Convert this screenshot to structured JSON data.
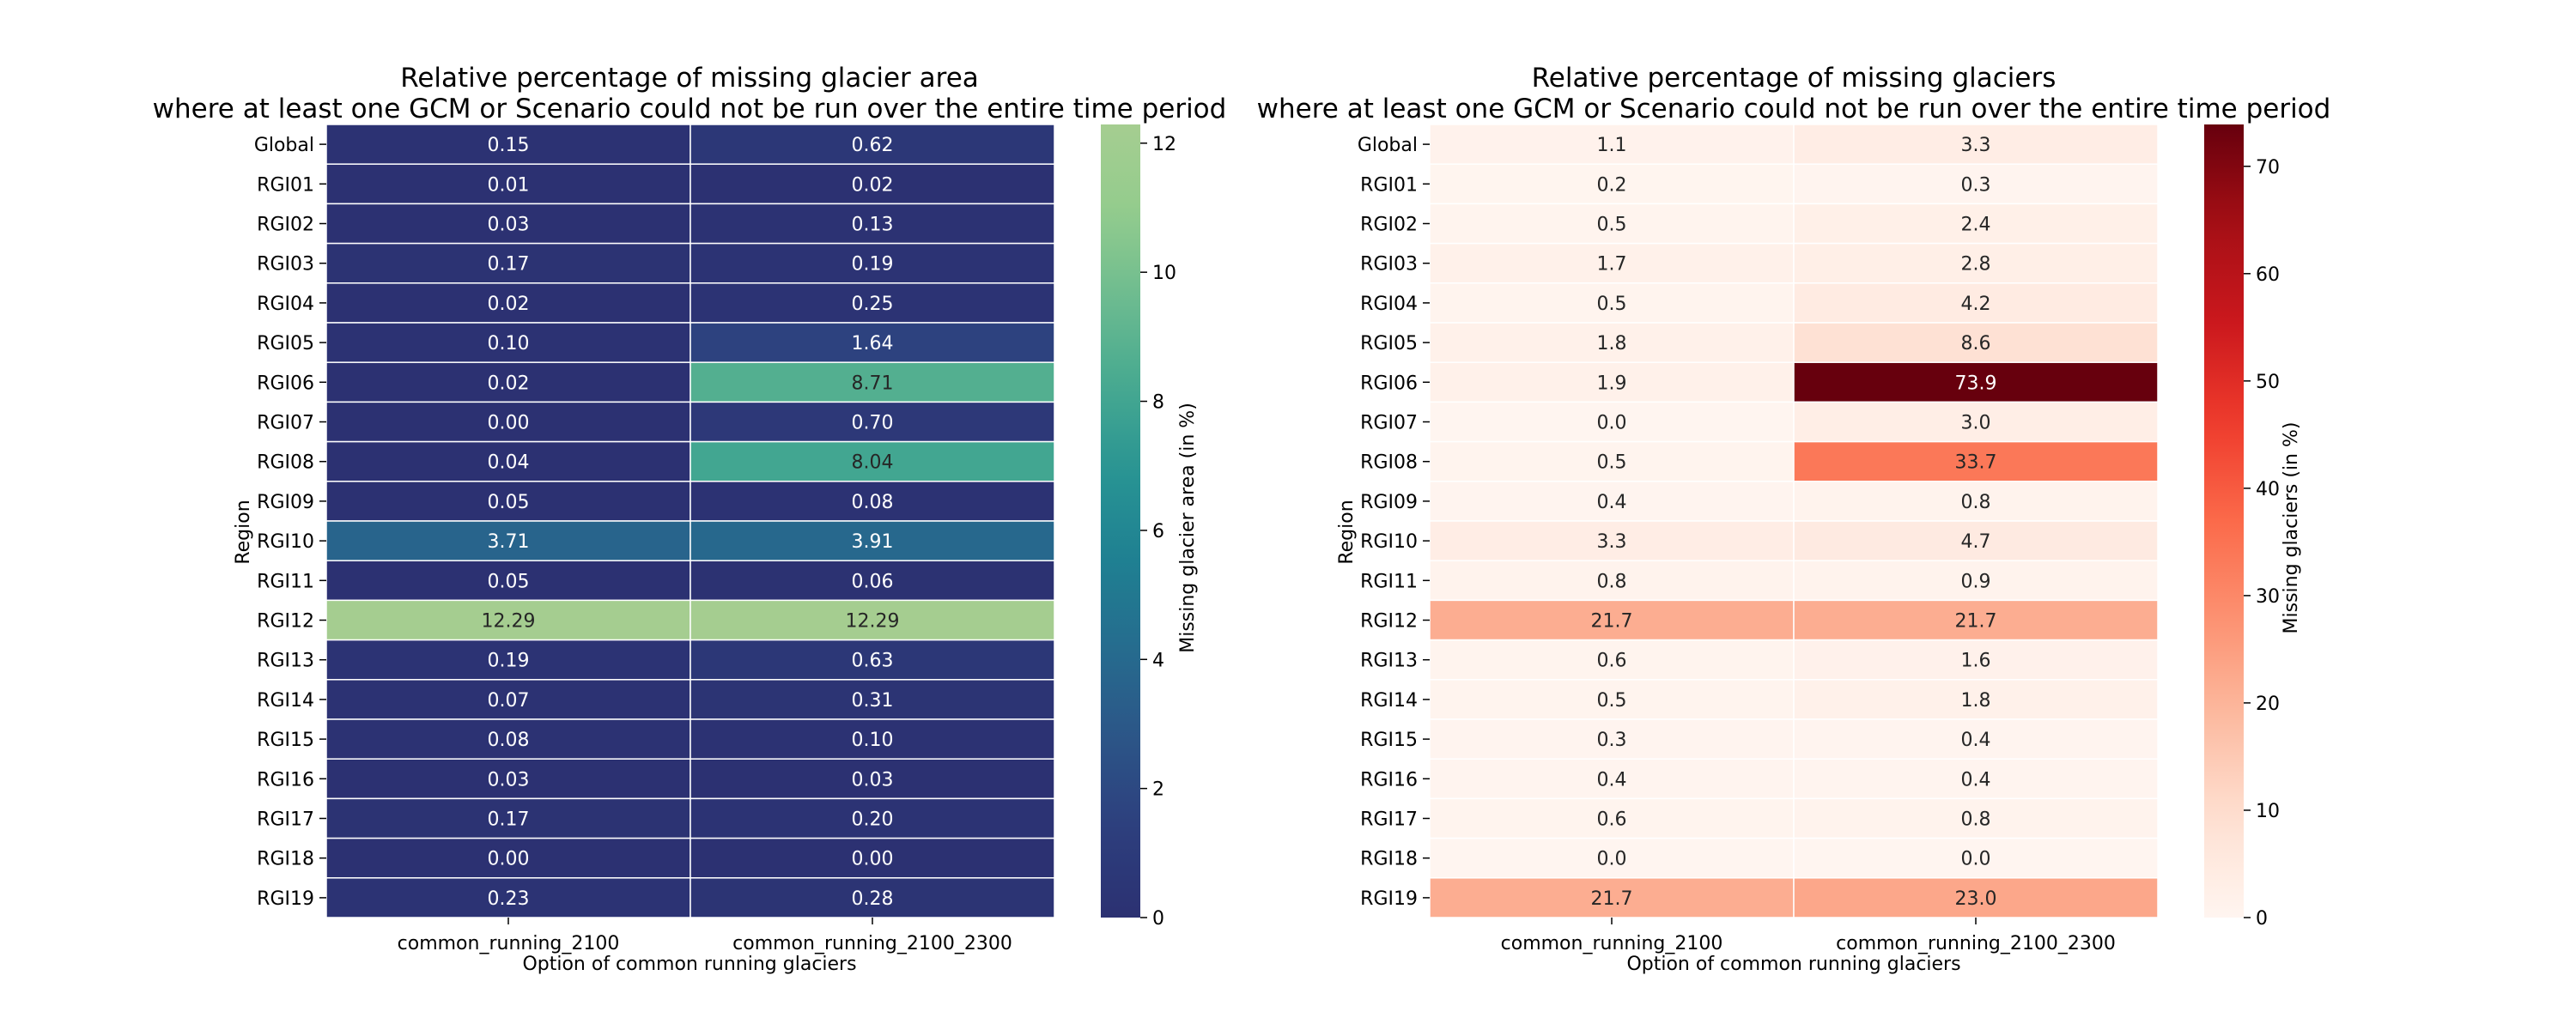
{
  "chart_data": [
    {
      "type": "heatmap",
      "title_line1": "Relative percentage of missing glacier area",
      "title_line2": "where at least one GCM or Scenario could not be run over the entire time period",
      "xlabel": "Option of common running glaciers",
      "ylabel": "Region",
      "x_categories": [
        "common_running_2100",
        "common_running_2100_2300"
      ],
      "y_categories": [
        "Global",
        "RGI01",
        "RGI02",
        "RGI03",
        "RGI04",
        "RGI05",
        "RGI06",
        "RGI07",
        "RGI08",
        "RGI09",
        "RGI10",
        "RGI11",
        "RGI12",
        "RGI13",
        "RGI14",
        "RGI15",
        "RGI16",
        "RGI17",
        "RGI18",
        "RGI19"
      ],
      "values": [
        [
          0.15,
          0.62
        ],
        [
          0.01,
          0.02
        ],
        [
          0.03,
          0.13
        ],
        [
          0.17,
          0.19
        ],
        [
          0.02,
          0.25
        ],
        [
          0.1,
          1.64
        ],
        [
          0.02,
          8.71
        ],
        [
          0.0,
          0.7
        ],
        [
          0.04,
          8.04
        ],
        [
          0.05,
          0.08
        ],
        [
          3.71,
          3.91
        ],
        [
          0.05,
          0.06
        ],
        [
          12.29,
          12.29
        ],
        [
          0.19,
          0.63
        ],
        [
          0.07,
          0.31
        ],
        [
          0.08,
          0.1
        ],
        [
          0.03,
          0.03
        ],
        [
          0.17,
          0.2
        ],
        [
          0.0,
          0.0
        ],
        [
          0.23,
          0.28
        ]
      ],
      "value_format_decimals": 2,
      "colormap": "crest",
      "colorbar_label": "Missing glacier area (in %)",
      "colorbar_range": [
        0,
        12.29
      ],
      "colorbar_ticks": [
        0,
        2,
        4,
        6,
        8,
        10,
        12
      ]
    },
    {
      "type": "heatmap",
      "title_line1": "Relative percentage of missing glaciers",
      "title_line2": "where at least one GCM or Scenario could not be run over the entire time period",
      "xlabel": "Option of common running glaciers",
      "ylabel": "Region",
      "x_categories": [
        "common_running_2100",
        "common_running_2100_2300"
      ],
      "y_categories": [
        "Global",
        "RGI01",
        "RGI02",
        "RGI03",
        "RGI04",
        "RGI05",
        "RGI06",
        "RGI07",
        "RGI08",
        "RGI09",
        "RGI10",
        "RGI11",
        "RGI12",
        "RGI13",
        "RGI14",
        "RGI15",
        "RGI16",
        "RGI17",
        "RGI18",
        "RGI19"
      ],
      "values": [
        [
          1.1,
          3.3
        ],
        [
          0.2,
          0.3
        ],
        [
          0.5,
          2.4
        ],
        [
          1.7,
          2.8
        ],
        [
          0.5,
          4.2
        ],
        [
          1.8,
          8.6
        ],
        [
          1.9,
          73.9
        ],
        [
          0.0,
          3.0
        ],
        [
          0.5,
          33.7
        ],
        [
          0.4,
          0.8
        ],
        [
          3.3,
          4.7
        ],
        [
          0.8,
          0.9
        ],
        [
          21.7,
          21.7
        ],
        [
          0.6,
          1.6
        ],
        [
          0.5,
          1.8
        ],
        [
          0.3,
          0.4
        ],
        [
          0.4,
          0.4
        ],
        [
          0.6,
          0.8
        ],
        [
          0.0,
          0.0
        ],
        [
          21.7,
          23.0
        ]
      ],
      "value_format_decimals": 1,
      "colormap": "Reds",
      "colorbar_label": "Missing glaciers (in %)",
      "colorbar_range": [
        0,
        73.9
      ],
      "colorbar_ticks": [
        0,
        10,
        20,
        30,
        40,
        50,
        60,
        70
      ]
    }
  ]
}
